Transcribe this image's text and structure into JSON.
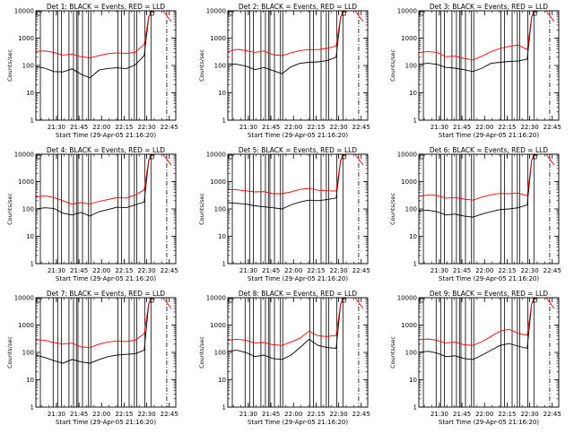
{
  "chart_data": {
    "type": "line",
    "xlabel": "Start Time (29-Apr-05 21:16:20)",
    "ylabel": "Counts/sec",
    "x_unit": "minutes after 21:16:20",
    "xlim": [
      0,
      93
    ],
    "ylim": [
      1,
      10000
    ],
    "yscale": "log",
    "yticks": [
      1,
      10,
      100,
      1000,
      10000
    ],
    "ytick_labels": [
      "1",
      "10",
      "100",
      "1000",
      "10000"
    ],
    "xtick_labels": [
      "21:30",
      "21:45",
      "22:00",
      "22:15",
      "22:30",
      "22:45"
    ],
    "xtick_values": [
      13.67,
      28.67,
      43.67,
      58.67,
      73.67,
      88.67
    ],
    "gap_markers_x": [
      3.0,
      11.5,
      14.5,
      17.0,
      22.0,
      25.0,
      27.0,
      28.0,
      31.0,
      35.0,
      36.5,
      54.5,
      57.0,
      62.0,
      65.5,
      67.0,
      72.5,
      76.5
    ],
    "dashdot_x": 87.0,
    "panels": [
      {
        "title": "Det 1: BLACK = Events, RED = LLD",
        "series": [
          {
            "color": "#000000",
            "x": [
              0,
              6,
              12,
              18,
              24,
              30,
              36,
              42,
              48,
              54,
              60,
              66,
              72,
              75,
              78
            ],
            "values": [
              90,
              80,
              60,
              58,
              75,
              48,
              35,
              68,
              78,
              82,
              76,
              105,
              230,
              6000,
              11000
            ]
          },
          {
            "color": "#ff0000",
            "x": [
              0,
              6,
              12,
              18,
              24,
              30,
              36,
              42,
              48,
              54,
              60,
              66,
              72,
              75,
              78,
              84,
              90
            ],
            "values": [
              330,
              340,
              300,
              240,
              260,
              210,
              190,
              230,
              270,
              290,
              275,
              300,
              600,
              6000,
              11000,
              11000,
              4000
            ]
          }
        ]
      },
      {
        "title": "Det 2: BLACK = Events, RED = LLD",
        "series": [
          {
            "color": "#000000",
            "x": [
              0,
              6,
              12,
              18,
              24,
              30,
              36,
              42,
              48,
              54,
              60,
              66,
              72,
              75,
              78
            ],
            "values": [
              115,
              110,
              95,
              70,
              85,
              65,
              50,
              90,
              120,
              130,
              135,
              150,
              200,
              6000,
              11000
            ]
          },
          {
            "color": "#ff0000",
            "x": [
              0,
              6,
              12,
              18,
              24,
              30,
              36,
              42,
              48,
              54,
              60,
              66,
              72,
              75,
              78,
              84,
              90
            ],
            "values": [
              320,
              390,
              350,
              300,
              340,
              250,
              230,
              290,
              350,
              380,
              380,
              420,
              520,
              6000,
              11000,
              11000,
              4000
            ]
          }
        ]
      },
      {
        "title": "Det 3: BLACK = Events, RED = LLD",
        "series": [
          {
            "color": "#000000",
            "x": [
              0,
              6,
              12,
              18,
              24,
              30,
              36,
              42,
              48,
              54,
              60,
              66,
              72,
              75,
              78
            ],
            "values": [
              110,
              120,
              110,
              85,
              80,
              70,
              60,
              80,
              120,
              130,
              140,
              145,
              170,
              6000,
              11000
            ]
          },
          {
            "color": "#ff0000",
            "x": [
              0,
              6,
              12,
              18,
              24,
              30,
              36,
              42,
              48,
              54,
              60,
              66,
              72,
              75,
              78,
              84,
              90
            ],
            "values": [
              300,
              320,
              300,
              210,
              220,
              180,
              160,
              220,
              320,
              420,
              500,
              560,
              380,
              6000,
              11000,
              11000,
              4000
            ]
          }
        ]
      },
      {
        "title": "Det 4: BLACK = Events, RED = LLD",
        "series": [
          {
            "color": "#000000",
            "x": [
              0,
              6,
              12,
              18,
              24,
              30,
              36,
              42,
              48,
              54,
              60,
              66,
              72,
              75,
              78
            ],
            "values": [
              100,
              110,
              105,
              70,
              60,
              75,
              55,
              80,
              95,
              115,
              110,
              140,
              180,
              6000,
              11000
            ]
          },
          {
            "color": "#ff0000",
            "x": [
              0,
              6,
              12,
              18,
              24,
              30,
              36,
              42,
              48,
              54,
              60,
              66,
              72,
              75,
              78,
              84,
              90
            ],
            "values": [
              270,
              300,
              260,
              200,
              150,
              170,
              150,
              190,
              220,
              260,
              250,
              320,
              500,
              6000,
              11000,
              11000,
              4000
            ]
          }
        ]
      },
      {
        "title": "Det 5: BLACK = Events, RED = LLD",
        "series": [
          {
            "color": "#000000",
            "x": [
              0,
              6,
              12,
              18,
              24,
              30,
              36,
              42,
              48,
              54,
              60,
              66,
              72,
              75,
              78
            ],
            "values": [
              170,
              160,
              150,
              130,
              120,
              110,
              100,
              140,
              180,
              210,
              200,
              220,
              250,
              6000,
              11000
            ]
          },
          {
            "color": "#ff0000",
            "x": [
              0,
              6,
              12,
              18,
              24,
              30,
              36,
              42,
              48,
              54,
              60,
              66,
              72,
              75,
              78,
              84,
              90
            ],
            "values": [
              520,
              500,
              460,
              420,
              430,
              360,
              360,
              420,
              520,
              560,
              480,
              460,
              450,
              6000,
              11000,
              11000,
              4000
            ]
          }
        ]
      },
      {
        "title": "Det 6: BLACK = Events, RED = LLD",
        "series": [
          {
            "color": "#000000",
            "x": [
              0,
              6,
              12,
              18,
              24,
              30,
              36,
              42,
              48,
              54,
              60,
              66,
              72,
              75,
              78
            ],
            "values": [
              85,
              90,
              80,
              60,
              65,
              55,
              50,
              65,
              80,
              95,
              100,
              110,
              140,
              6000,
              11000
            ]
          },
          {
            "color": "#ff0000",
            "x": [
              0,
              6,
              12,
              18,
              24,
              30,
              36,
              42,
              48,
              54,
              60,
              66,
              72,
              75,
              78,
              84,
              90
            ],
            "values": [
              290,
              320,
              310,
              250,
              260,
              230,
              210,
              270,
              330,
              370,
              360,
              380,
              300,
              6000,
              11000,
              11000,
              4000
            ]
          }
        ]
      },
      {
        "title": "Det 7: BLACK = Events, RED = LLD",
        "series": [
          {
            "color": "#000000",
            "x": [
              0,
              6,
              12,
              18,
              24,
              30,
              36,
              42,
              48,
              54,
              60,
              66,
              72,
              75,
              78
            ],
            "values": [
              80,
              65,
              50,
              40,
              55,
              45,
              40,
              55,
              70,
              80,
              85,
              90,
              120,
              6000,
              11000
            ]
          },
          {
            "color": "#ff0000",
            "x": [
              0,
              6,
              12,
              18,
              24,
              30,
              36,
              42,
              48,
              54,
              60,
              66,
              72,
              75,
              78,
              84,
              90
            ],
            "values": [
              290,
              280,
              230,
              200,
              220,
              160,
              150,
              200,
              240,
              260,
              250,
              280,
              480,
              6000,
              11000,
              11000,
              4000
            ]
          }
        ]
      },
      {
        "title": "Det 8: BLACK = Events, RED = LLD",
        "series": [
          {
            "color": "#000000",
            "x": [
              0,
              6,
              12,
              18,
              24,
              30,
              36,
              42,
              48,
              54,
              60,
              66,
              72,
              75,
              78
            ],
            "values": [
              110,
              120,
              100,
              70,
              80,
              60,
              55,
              80,
              150,
              300,
              180,
              150,
              140,
              6000,
              11000
            ]
          },
          {
            "color": "#ff0000",
            "x": [
              0,
              6,
              12,
              18,
              24,
              30,
              36,
              42,
              48,
              54,
              60,
              66,
              72,
              75,
              78,
              84,
              90
            ],
            "values": [
              280,
              300,
              280,
              220,
              230,
              190,
              180,
              240,
              330,
              600,
              400,
              380,
              420,
              6000,
              11000,
              11000,
              4000
            ]
          }
        ]
      },
      {
        "title": "Det 9: BLACK = Events, RED = LLD",
        "series": [
          {
            "color": "#000000",
            "x": [
              0,
              6,
              12,
              18,
              24,
              30,
              36,
              42,
              48,
              54,
              60,
              66,
              72,
              75,
              78
            ],
            "values": [
              100,
              110,
              95,
              70,
              75,
              60,
              55,
              80,
              120,
              180,
              210,
              170,
              140,
              6000,
              11000
            ]
          },
          {
            "color": "#ff0000",
            "x": [
              0,
              6,
              12,
              18,
              24,
              30,
              36,
              42,
              48,
              54,
              60,
              66,
              72,
              75,
              78,
              84,
              90
            ],
            "values": [
              290,
              310,
              280,
              220,
              240,
              190,
              180,
              250,
              380,
              600,
              700,
              500,
              420,
              6000,
              11000,
              11000,
              4000
            ]
          }
        ]
      }
    ]
  }
}
